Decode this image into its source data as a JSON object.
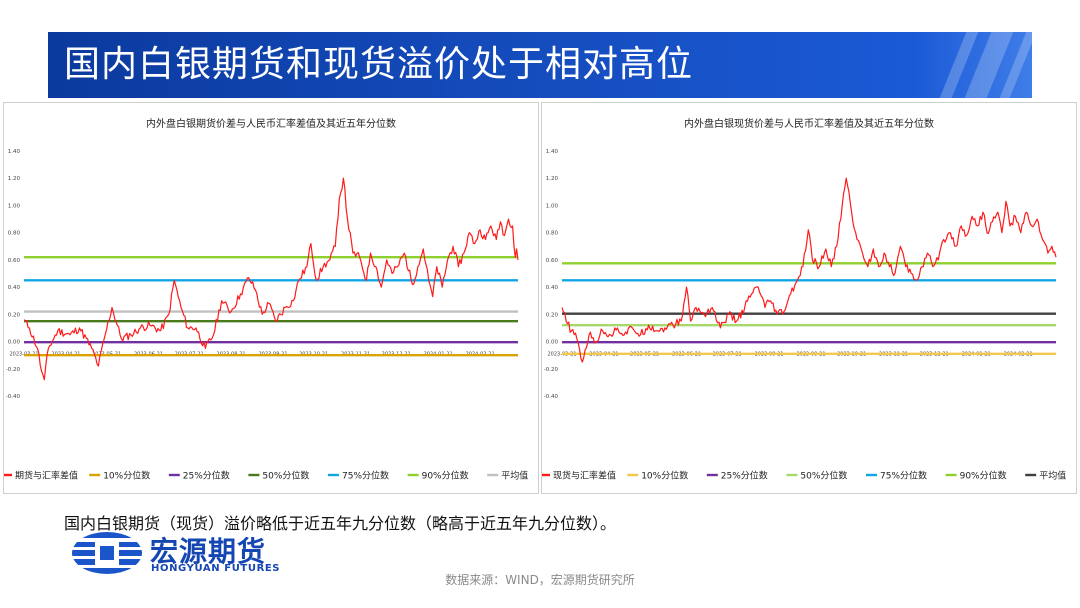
{
  "title": "国内白银期货和现货溢价处于相对高位",
  "conclusion": "国内白银期货（现货）溢价略低于近五年九分位数（略高于近五年九分位数）。",
  "logo": {
    "cn": "宏源期货",
    "en": "HONGYUAN FUTURES"
  },
  "source": "数据来源：WIND，宏源期货研究所",
  "colors": {
    "brand": "#1547b3",
    "series": "#ff1a1a"
  },
  "chart_data": [
    {
      "type": "line",
      "title": "内外盘白银期货价差与人民币汇率差值及其近五年分位数",
      "ylim": [
        -0.4,
        1.4
      ],
      "yticks": [
        "1.40",
        "1.20",
        "1.00",
        "0.80",
        "0.60",
        "0.40",
        "0.20",
        "0.00",
        "-0.20",
        "-0.40"
      ],
      "xticks": [
        "2023-03-21",
        "2023-04-21",
        "2023-05-21",
        "2023-06-21",
        "2023-07-21",
        "2023-08-21",
        "2023-09-21",
        "2023-10-21",
        "2023-11-21",
        "2023-12-21",
        "2024-01-21",
        "2024-02-21"
      ],
      "x_range": [
        "2023-03-21",
        "2024-03-20"
      ],
      "series_name": "期货与汇率差值",
      "lines": [
        {
          "name": "10%分位数",
          "value": -0.1,
          "color": "#d9a400"
        },
        {
          "name": "25%分位数",
          "value": -0.005,
          "color": "#7030a0"
        },
        {
          "name": "50%分位数",
          "value": 0.15,
          "color": "#4a7a1c"
        },
        {
          "name": "75%分位数",
          "value": 0.45,
          "color": "#12a5e6"
        },
        {
          "name": "90%分位数",
          "value": 0.62,
          "color": "#8ed12e"
        },
        {
          "name": "平均值",
          "value": 0.22,
          "color": "#c0c0c0"
        }
      ],
      "anchors": [
        [
          "2023-03-21",
          0.16
        ],
        [
          "2023-03-25",
          0.1
        ],
        [
          "2023-03-31",
          -0.05
        ],
        [
          "2023-04-03",
          -0.22
        ],
        [
          "2023-04-05",
          -0.28
        ],
        [
          "2023-04-08",
          -0.05
        ],
        [
          "2023-04-15",
          0.08
        ],
        [
          "2023-04-24",
          0.05
        ],
        [
          "2023-05-01",
          0.1
        ],
        [
          "2023-05-10",
          -0.05
        ],
        [
          "2023-05-15",
          -0.18
        ],
        [
          "2023-05-20",
          0.05
        ],
        [
          "2023-05-25",
          0.25
        ],
        [
          "2023-06-01",
          0.02
        ],
        [
          "2023-06-08",
          0.05
        ],
        [
          "2023-06-15",
          0.1
        ],
        [
          "2023-06-22",
          0.12
        ],
        [
          "2023-06-30",
          0.08
        ],
        [
          "2023-07-06",
          0.2
        ],
        [
          "2023-07-10",
          0.45
        ],
        [
          "2023-07-15",
          0.25
        ],
        [
          "2023-07-20",
          0.1
        ],
        [
          "2023-07-26",
          0.1
        ],
        [
          "2023-08-02",
          -0.05
        ],
        [
          "2023-08-08",
          0.05
        ],
        [
          "2023-08-14",
          0.3
        ],
        [
          "2023-08-21",
          0.22
        ],
        [
          "2023-08-28",
          0.35
        ],
        [
          "2023-09-03",
          0.47
        ],
        [
          "2023-09-08",
          0.38
        ],
        [
          "2023-09-13",
          0.2
        ],
        [
          "2023-09-18",
          0.28
        ],
        [
          "2023-09-23",
          0.15
        ],
        [
          "2023-09-30",
          0.25
        ],
        [
          "2023-10-06",
          0.3
        ],
        [
          "2023-10-10",
          0.45
        ],
        [
          "2023-10-16",
          0.55
        ],
        [
          "2023-10-19",
          0.72
        ],
        [
          "2023-10-23",
          0.45
        ],
        [
          "2023-10-28",
          0.55
        ],
        [
          "2023-11-02",
          0.6
        ],
        [
          "2023-11-06",
          0.7
        ],
        [
          "2023-11-09",
          1.05
        ],
        [
          "2023-11-12",
          1.2
        ],
        [
          "2023-11-15",
          0.9
        ],
        [
          "2023-11-19",
          0.65
        ],
        [
          "2023-11-24",
          0.62
        ],
        [
          "2023-11-29",
          0.45
        ],
        [
          "2023-12-02",
          0.65
        ],
        [
          "2023-12-06",
          0.55
        ],
        [
          "2023-12-10",
          0.4
        ],
        [
          "2023-12-14",
          0.6
        ],
        [
          "2023-12-18",
          0.5
        ],
        [
          "2023-12-22",
          0.55
        ],
        [
          "2023-12-27",
          0.65
        ],
        [
          "2024-01-02",
          0.42
        ],
        [
          "2024-01-06",
          0.55
        ],
        [
          "2024-01-10",
          0.68
        ],
        [
          "2024-01-14",
          0.45
        ],
        [
          "2024-01-17",
          0.33
        ],
        [
          "2024-01-20",
          0.55
        ],
        [
          "2024-01-24",
          0.4
        ],
        [
          "2024-01-28",
          0.6
        ],
        [
          "2024-02-01",
          0.7
        ],
        [
          "2024-02-05",
          0.55
        ],
        [
          "2024-02-09",
          0.65
        ],
        [
          "2024-02-13",
          0.8
        ],
        [
          "2024-02-17",
          0.72
        ],
        [
          "2024-02-21",
          0.82
        ],
        [
          "2024-02-25",
          0.75
        ],
        [
          "2024-02-29",
          0.85
        ],
        [
          "2024-03-04",
          0.75
        ],
        [
          "2024-03-07",
          0.88
        ],
        [
          "2024-03-10",
          0.78
        ],
        [
          "2024-03-13",
          0.9
        ],
        [
          "2024-03-16",
          0.85
        ],
        [
          "2024-03-18",
          0.62
        ],
        [
          "2024-03-19",
          0.68
        ],
        [
          "2024-03-20",
          0.6
        ]
      ]
    },
    {
      "type": "line",
      "title": "内外盘白银现货价差与人民币汇率差值及其近五年分位数",
      "ylim": [
        -0.4,
        1.4
      ],
      "yticks": [
        "1.40",
        "1.20",
        "1.00",
        "0.80",
        "0.60",
        "0.40",
        "0.20",
        "0.00",
        "-0.20",
        "-0.40"
      ],
      "xticks": [
        "2023-03-21",
        "2023-04-21",
        "2023-05-21",
        "2023-06-21",
        "2023-07-21",
        "2023-08-21",
        "2023-09-21",
        "2023-10-21",
        "2023-11-21",
        "2023-12-21",
        "2024-01-21",
        "2024-02-21"
      ],
      "x_range": [
        "2023-03-21",
        "2024-03-20"
      ],
      "series_name": "现货与汇率差值",
      "lines": [
        {
          "name": "10%分位数",
          "value": -0.09,
          "color": "#f2c94c"
        },
        {
          "name": "25%分位数",
          "value": -0.005,
          "color": "#7030a0"
        },
        {
          "name": "50%分位数",
          "value": 0.12,
          "color": "#a6d96a"
        },
        {
          "name": "75%分位数",
          "value": 0.45,
          "color": "#12a5e6"
        },
        {
          "name": "90%分位数",
          "value": 0.575,
          "color": "#8ed12e"
        },
        {
          "name": "平均值",
          "value": 0.205,
          "color": "#404040"
        }
      ],
      "anchors": [
        [
          "2023-03-21",
          0.25
        ],
        [
          "2023-03-24",
          0.15
        ],
        [
          "2023-03-28",
          0.08
        ],
        [
          "2023-04-01",
          0.02
        ],
        [
          "2023-04-05",
          -0.15
        ],
        [
          "2023-04-10",
          0.05
        ],
        [
          "2023-04-15",
          0.0
        ],
        [
          "2023-04-20",
          0.08
        ],
        [
          "2023-04-26",
          0.05
        ],
        [
          "2023-05-01",
          0.1
        ],
        [
          "2023-05-06",
          0.05
        ],
        [
          "2023-05-12",
          0.1
        ],
        [
          "2023-05-18",
          0.05
        ],
        [
          "2023-05-24",
          0.12
        ],
        [
          "2023-05-30",
          0.08
        ],
        [
          "2023-06-05",
          0.1
        ],
        [
          "2023-06-11",
          0.12
        ],
        [
          "2023-06-17",
          0.15
        ],
        [
          "2023-06-21",
          0.4
        ],
        [
          "2023-06-24",
          0.15
        ],
        [
          "2023-06-28",
          0.25
        ],
        [
          "2023-07-04",
          0.2
        ],
        [
          "2023-07-10",
          0.25
        ],
        [
          "2023-07-16",
          0.1
        ],
        [
          "2023-07-22",
          0.2
        ],
        [
          "2023-07-28",
          0.15
        ],
        [
          "2023-08-03",
          0.25
        ],
        [
          "2023-08-08",
          0.35
        ],
        [
          "2023-08-13",
          0.4
        ],
        [
          "2023-08-18",
          0.25
        ],
        [
          "2023-08-22",
          0.3
        ],
        [
          "2023-08-27",
          0.2
        ],
        [
          "2023-09-01",
          0.22
        ],
        [
          "2023-09-06",
          0.35
        ],
        [
          "2023-09-11",
          0.45
        ],
        [
          "2023-09-15",
          0.55
        ],
        [
          "2023-09-19",
          0.82
        ],
        [
          "2023-09-22",
          0.6
        ],
        [
          "2023-09-27",
          0.55
        ],
        [
          "2023-10-02",
          0.68
        ],
        [
          "2023-10-06",
          0.55
        ],
        [
          "2023-10-10",
          0.7
        ],
        [
          "2023-10-14",
          1.0
        ],
        [
          "2023-10-17",
          1.2
        ],
        [
          "2023-10-21",
          0.95
        ],
        [
          "2023-10-25",
          0.75
        ],
        [
          "2023-10-29",
          0.65
        ],
        [
          "2023-11-02",
          0.55
        ],
        [
          "2023-11-06",
          0.68
        ],
        [
          "2023-11-10",
          0.55
        ],
        [
          "2023-11-14",
          0.65
        ],
        [
          "2023-11-18",
          0.55
        ],
        [
          "2023-11-22",
          0.5
        ],
        [
          "2023-11-26",
          0.7
        ],
        [
          "2023-11-30",
          0.55
        ],
        [
          "2023-12-04",
          0.5
        ],
        [
          "2023-12-08",
          0.45
        ],
        [
          "2023-12-12",
          0.55
        ],
        [
          "2023-12-16",
          0.65
        ],
        [
          "2023-12-20",
          0.55
        ],
        [
          "2023-12-24",
          0.6
        ],
        [
          "2023-12-28",
          0.75
        ],
        [
          "2024-01-02",
          0.8
        ],
        [
          "2024-01-06",
          0.7
        ],
        [
          "2024-01-10",
          0.85
        ],
        [
          "2024-01-14",
          0.78
        ],
        [
          "2024-01-18",
          0.92
        ],
        [
          "2024-01-22",
          0.85
        ],
        [
          "2024-01-26",
          0.95
        ],
        [
          "2024-01-29",
          0.8
        ],
        [
          "2024-02-02",
          0.88
        ],
        [
          "2024-02-06",
          0.95
        ],
        [
          "2024-02-09",
          0.8
        ],
        [
          "2024-02-12",
          1.03
        ],
        [
          "2024-02-15",
          0.85
        ],
        [
          "2024-02-19",
          0.92
        ],
        [
          "2024-02-23",
          0.8
        ],
        [
          "2024-02-27",
          0.95
        ],
        [
          "2024-03-02",
          0.85
        ],
        [
          "2024-03-06",
          0.9
        ],
        [
          "2024-03-10",
          0.75
        ],
        [
          "2024-03-14",
          0.65
        ],
        [
          "2024-03-17",
          0.7
        ],
        [
          "2024-03-20",
          0.62
        ]
      ]
    }
  ]
}
